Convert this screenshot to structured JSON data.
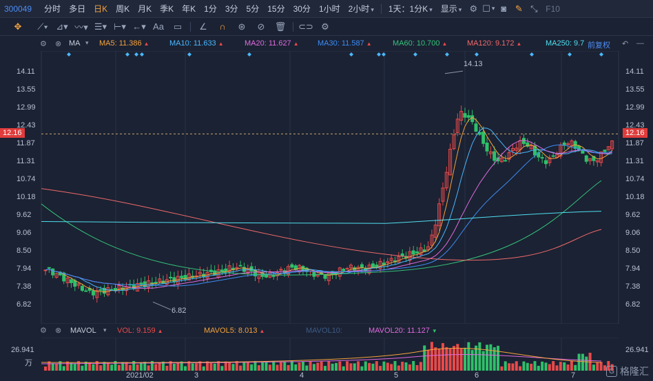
{
  "topbar": {
    "stock_code": "300049",
    "periods": [
      "分时",
      "多日",
      "日K",
      "周K",
      "月K",
      "季K",
      "年K",
      "1分",
      "3分",
      "5分",
      "15分",
      "30分",
      "1小时",
      "2小时"
    ],
    "active_period": "日K",
    "period_select": "1天：1分K",
    "display_label": "显示",
    "f10_label": "F10"
  },
  "toolbar": {
    "text_tool_label": "Aa"
  },
  "ma_bar": {
    "indicator": "MA",
    "ma5": "MA5: 11.386",
    "ma10": "MA10: 11.633",
    "ma20": "MA20: 11.627",
    "ma30": "MA30: 11.587",
    "ma60": "MA60: 10.700",
    "ma120": "MA120: 9.172",
    "ma250": "MA250: 9.7",
    "adjust": "前复权"
  },
  "colors": {
    "up": "#e84a4a",
    "down": "#2fc06a",
    "ma5": "#f7a33b",
    "ma10": "#4ab8ff",
    "ma20": "#e16be0",
    "ma30": "#3d8df5",
    "ma60": "#34c27a",
    "ma120": "#f06a6a",
    "ma250": "#4fe0f0",
    "background": "#1b2233"
  },
  "price_axis": {
    "ticks": [
      "14.11",
      "13.55",
      "12.99",
      "12.43",
      "11.87",
      "11.31",
      "10.74",
      "10.18",
      "9.62",
      "9.06",
      "8.50",
      "7.94",
      "7.38",
      "6.82"
    ],
    "current_price": "12.16",
    "high_label": "14.13",
    "low_label": "6.82"
  },
  "volume_bar": {
    "indicator": "MAVOL",
    "vol": "VOL: 9.159",
    "mavol5": "MAVOL5: 8.013",
    "mavol10": "MAVOL10:",
    "mavol20": "MAVOL20: 11.127",
    "axis_value": "26.941",
    "axis_unit": "万"
  },
  "x_axis": {
    "labels": [
      "2021/02",
      "3",
      "4",
      "5",
      "6",
      "7"
    ]
  },
  "watermark": {
    "text": "格隆汇",
    "logo": "G"
  },
  "chart_data": {
    "type": "candlestick",
    "ylim": [
      6.6,
      14.4
    ],
    "ma_values": {
      "MA5": 11.386,
      "MA10": 11.633,
      "MA20": 11.627,
      "MA30": 11.587,
      "MA60": 10.7,
      "MA120": 9.172,
      "MA250": 9.7
    },
    "current": 12.16,
    "period_high": 14.13,
    "period_low": 6.82,
    "volume_max_wan": 26.941
  }
}
